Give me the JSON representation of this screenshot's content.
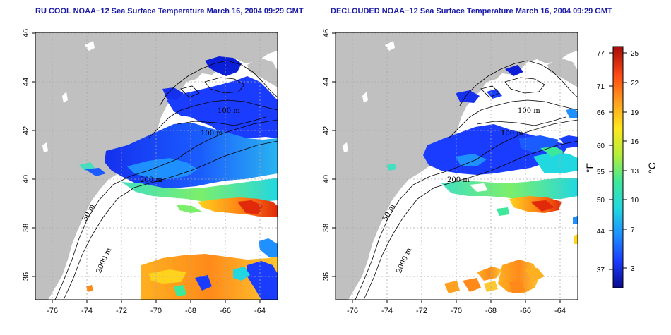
{
  "maps": [
    {
      "id": "left",
      "title": "RU COOL NOAA−12 Sea Surface Temperature March 16, 2004 09:29 GMT",
      "x_ticks": [
        "-76",
        "-74",
        "-72",
        "-70",
        "-68",
        "-66",
        "-64"
      ],
      "y_ticks": [
        "46",
        "44",
        "42",
        "40",
        "38",
        "36"
      ],
      "contour_labels": [
        "100 m",
        "100 m",
        "200 m",
        "50 m",
        "2000 m"
      ]
    },
    {
      "id": "right",
      "title": "DECLOUDED NOAA−12 Sea Surface Temperature March 16, 2004 09:29 GMT",
      "x_ticks": [
        "-76",
        "-74",
        "-72",
        "-70",
        "-68",
        "-66",
        "-64"
      ],
      "y_ticks": [
        "46",
        "44",
        "42",
        "40",
        "38",
        "36"
      ],
      "contour_labels": [
        "100 m",
        "100 m",
        "200 m",
        "50 m",
        "2000 m"
      ]
    }
  ],
  "colorbar": {
    "fahrenheit": [
      "77",
      "71",
      "66",
      "60",
      "55",
      "50",
      "44",
      "37"
    ],
    "celsius": [
      "25",
      "22",
      "19",
      "16",
      "13",
      "10",
      "7",
      "3"
    ],
    "unit_f": "°F",
    "unit_c": "°C",
    "colors": [
      "#0a0a8c",
      "#1a3cff",
      "#1e90ff",
      "#22d8e0",
      "#3ee89a",
      "#b4ee3a",
      "#ffe81e",
      "#ffa01e",
      "#ff4a14",
      "#a50a0a"
    ]
  },
  "colors": {
    "land": "#c0c0c0",
    "grid": "#a8a8a8",
    "title": "#1a1aa6"
  }
}
